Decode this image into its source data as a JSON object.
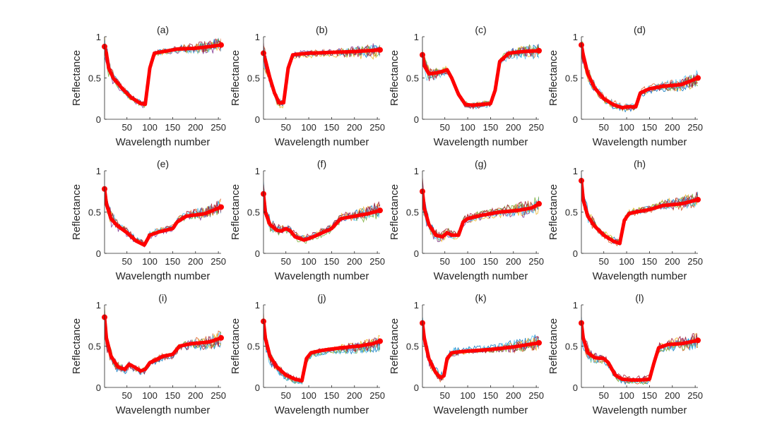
{
  "chart_data": [
    {
      "type": "line",
      "title": "(a)",
      "xlabel": "Wavelength number",
      "ylabel": "Reflectance",
      "xlim": [
        1,
        256
      ],
      "ylim": [
        0,
        1
      ],
      "xticks": [
        50,
        100,
        150,
        200,
        250
      ],
      "yticks": [
        0,
        0.5,
        1
      ],
      "ytick_labels": [
        "0",
        "0.5",
        "1"
      ],
      "series": [
        {
          "name": "mean",
          "color": "#ff0000",
          "x": [
            1,
            5,
            10,
            20,
            40,
            60,
            80,
            90,
            100,
            110,
            130,
            160,
            200,
            230,
            256
          ],
          "y": [
            0.88,
            0.8,
            0.62,
            0.5,
            0.37,
            0.26,
            0.19,
            0.18,
            0.62,
            0.8,
            0.82,
            0.85,
            0.86,
            0.88,
            0.9
          ]
        }
      ]
    },
    {
      "type": "line",
      "title": "(b)",
      "xlabel": "Wavelength number",
      "ylabel": "Reflectance",
      "xlim": [
        1,
        256
      ],
      "ylim": [
        0,
        1
      ],
      "xticks": [
        50,
        100,
        150,
        200,
        250
      ],
      "yticks": [
        0,
        0.5,
        1
      ],
      "ytick_labels": [
        "0",
        "0.5",
        "1"
      ],
      "series": [
        {
          "name": "mean",
          "color": "#ff0000",
          "x": [
            1,
            5,
            15,
            25,
            35,
            45,
            55,
            65,
            80,
            100,
            150,
            200,
            230,
            256
          ],
          "y": [
            0.8,
            0.72,
            0.5,
            0.32,
            0.2,
            0.2,
            0.62,
            0.78,
            0.79,
            0.8,
            0.81,
            0.82,
            0.83,
            0.84
          ]
        }
      ]
    },
    {
      "type": "line",
      "title": "(c)",
      "xlabel": "Wavelength number",
      "ylabel": "Reflectance",
      "xlim": [
        1,
        256
      ],
      "ylim": [
        0,
        1
      ],
      "xticks": [
        50,
        100,
        150,
        200,
        250
      ],
      "yticks": [
        0,
        0.5,
        1
      ],
      "ytick_labels": [
        "0",
        "0.5",
        "1"
      ],
      "series": [
        {
          "name": "mean",
          "color": "#ff0000",
          "x": [
            1,
            5,
            15,
            30,
            45,
            55,
            65,
            80,
            95,
            110,
            130,
            150,
            160,
            170,
            190,
            220,
            256
          ],
          "y": [
            0.78,
            0.65,
            0.55,
            0.56,
            0.58,
            0.6,
            0.5,
            0.3,
            0.18,
            0.17,
            0.18,
            0.19,
            0.35,
            0.7,
            0.8,
            0.82,
            0.83
          ]
        }
      ]
    },
    {
      "type": "line",
      "title": "(d)",
      "xlabel": "Wavelength number",
      "ylabel": "Reflectance",
      "xlim": [
        1,
        256
      ],
      "ylim": [
        0,
        1
      ],
      "xticks": [
        50,
        100,
        150,
        200,
        250
      ],
      "yticks": [
        0,
        0.5,
        1
      ],
      "ytick_labels": [
        "0",
        "0.5",
        "1"
      ],
      "series": [
        {
          "name": "mean",
          "color": "#ff0000",
          "x": [
            1,
            5,
            15,
            30,
            50,
            70,
            90,
            100,
            120,
            130,
            150,
            180,
            220,
            256
          ],
          "y": [
            0.9,
            0.78,
            0.55,
            0.38,
            0.25,
            0.18,
            0.14,
            0.15,
            0.15,
            0.32,
            0.37,
            0.4,
            0.42,
            0.5
          ]
        }
      ]
    },
    {
      "type": "line",
      "title": "(e)",
      "xlabel": "Wavelength number",
      "ylabel": "Reflectance",
      "xlim": [
        1,
        256
      ],
      "ylim": [
        0,
        1
      ],
      "xticks": [
        50,
        100,
        150,
        200,
        250
      ],
      "yticks": [
        0,
        0.5,
        1
      ],
      "ytick_labels": [
        "0",
        "0.5",
        "1"
      ],
      "series": [
        {
          "name": "mean",
          "color": "#ff0000",
          "x": [
            1,
            5,
            15,
            30,
            50,
            70,
            88,
            100,
            120,
            150,
            160,
            180,
            220,
            256
          ],
          "y": [
            0.78,
            0.6,
            0.42,
            0.33,
            0.25,
            0.15,
            0.1,
            0.22,
            0.26,
            0.3,
            0.38,
            0.45,
            0.48,
            0.56
          ]
        }
      ]
    },
    {
      "type": "line",
      "title": "(f)",
      "xlabel": "Wavelength number",
      "ylabel": "Reflectance",
      "xlim": [
        1,
        256
      ],
      "ylim": [
        0,
        1
      ],
      "xticks": [
        50,
        100,
        150,
        200,
        250
      ],
      "yticks": [
        0,
        0.5,
        1
      ],
      "ytick_labels": [
        "0",
        "0.5",
        "1"
      ],
      "series": [
        {
          "name": "mean",
          "color": "#ff0000",
          "x": [
            1,
            5,
            15,
            30,
            40,
            50,
            60,
            70,
            90,
            110,
            130,
            150,
            170,
            200,
            230,
            256
          ],
          "y": [
            0.72,
            0.5,
            0.35,
            0.28,
            0.27,
            0.3,
            0.27,
            0.2,
            0.16,
            0.2,
            0.25,
            0.3,
            0.42,
            0.45,
            0.48,
            0.52
          ]
        }
      ]
    },
    {
      "type": "line",
      "title": "(g)",
      "xlabel": "Wavelength number",
      "ylabel": "Reflectance",
      "xlim": [
        1,
        256
      ],
      "ylim": [
        0,
        1
      ],
      "xticks": [
        50,
        100,
        150,
        200,
        250
      ],
      "yticks": [
        0,
        0.5,
        1
      ],
      "ytick_labels": [
        "0",
        "0.5",
        "1"
      ],
      "series": [
        {
          "name": "mean",
          "color": "#ff0000",
          "x": [
            1,
            5,
            15,
            30,
            45,
            55,
            65,
            80,
            90,
            100,
            130,
            170,
            210,
            240,
            256
          ],
          "y": [
            0.75,
            0.55,
            0.35,
            0.22,
            0.2,
            0.25,
            0.22,
            0.22,
            0.38,
            0.42,
            0.46,
            0.5,
            0.52,
            0.55,
            0.6
          ]
        }
      ]
    },
    {
      "type": "line",
      "title": "(h)",
      "xlabel": "Wavelength number",
      "ylabel": "Reflectance",
      "xlim": [
        1,
        256
      ],
      "ylim": [
        0,
        1
      ],
      "xticks": [
        50,
        100,
        150,
        200,
        250
      ],
      "yticks": [
        0,
        0.5,
        1
      ],
      "ytick_labels": [
        "0",
        "0.5",
        "1"
      ],
      "series": [
        {
          "name": "mean",
          "color": "#ff0000",
          "x": [
            1,
            5,
            15,
            30,
            50,
            70,
            85,
            95,
            105,
            120,
            150,
            180,
            220,
            256
          ],
          "y": [
            0.88,
            0.65,
            0.45,
            0.33,
            0.22,
            0.15,
            0.12,
            0.4,
            0.48,
            0.5,
            0.53,
            0.58,
            0.6,
            0.65
          ]
        }
      ]
    },
    {
      "type": "line",
      "title": "(i)",
      "xlabel": "Wavelength number",
      "ylabel": "Reflectance",
      "xlim": [
        1,
        256
      ],
      "ylim": [
        0,
        1
      ],
      "xticks": [
        50,
        100,
        150,
        200,
        250
      ],
      "yticks": [
        0,
        0.5,
        1
      ],
      "ytick_labels": [
        "0",
        "0.5",
        "1"
      ],
      "series": [
        {
          "name": "mean",
          "color": "#ff0000",
          "x": [
            1,
            5,
            15,
            30,
            45,
            55,
            65,
            80,
            90,
            100,
            130,
            150,
            165,
            190,
            230,
            256
          ],
          "y": [
            0.85,
            0.6,
            0.38,
            0.25,
            0.22,
            0.28,
            0.25,
            0.2,
            0.22,
            0.3,
            0.38,
            0.4,
            0.5,
            0.53,
            0.55,
            0.6
          ]
        }
      ]
    },
    {
      "type": "line",
      "title": "(j)",
      "xlabel": "Wavelength number",
      "ylabel": "Reflectance",
      "xlim": [
        1,
        256
      ],
      "ylim": [
        0,
        1
      ],
      "xticks": [
        50,
        100,
        150,
        200,
        250
      ],
      "yticks": [
        0,
        0.5,
        1
      ],
      "ytick_labels": [
        "0",
        "0.5",
        "1"
      ],
      "series": [
        {
          "name": "mean",
          "color": "#ff0000",
          "x": [
            1,
            5,
            15,
            30,
            50,
            70,
            85,
            95,
            105,
            130,
            170,
            210,
            240,
            256
          ],
          "y": [
            0.8,
            0.6,
            0.38,
            0.25,
            0.15,
            0.1,
            0.08,
            0.35,
            0.42,
            0.45,
            0.48,
            0.5,
            0.53,
            0.56
          ]
        }
      ]
    },
    {
      "type": "line",
      "title": "(k)",
      "xlabel": "Wavelength number",
      "ylabel": "Reflectance",
      "xlim": [
        1,
        256
      ],
      "ylim": [
        0,
        1
      ],
      "xticks": [
        50,
        100,
        150,
        200,
        250
      ],
      "yticks": [
        0,
        0.5,
        1
      ],
      "ytick_labels": [
        "0",
        "0.5",
        "1"
      ],
      "series": [
        {
          "name": "mean",
          "color": "#ff0000",
          "x": [
            1,
            5,
            15,
            30,
            40,
            48,
            55,
            65,
            80,
            100,
            150,
            200,
            256
          ],
          "y": [
            0.78,
            0.6,
            0.35,
            0.18,
            0.12,
            0.14,
            0.35,
            0.42,
            0.43,
            0.44,
            0.46,
            0.49,
            0.54
          ]
        }
      ]
    },
    {
      "type": "line",
      "title": "(l)",
      "xlabel": "Wavelength number",
      "ylabel": "Reflectance",
      "xlim": [
        1,
        256
      ],
      "ylim": [
        0,
        1
      ],
      "xticks": [
        50,
        100,
        150,
        200,
        250
      ],
      "yticks": [
        0,
        0.5,
        1
      ],
      "ytick_labels": [
        "0",
        "0.5",
        "1"
      ],
      "series": [
        {
          "name": "mean",
          "color": "#ff0000",
          "x": [
            1,
            5,
            15,
            30,
            50,
            60,
            75,
            90,
            110,
            130,
            150,
            160,
            170,
            190,
            220,
            256
          ],
          "y": [
            0.78,
            0.6,
            0.42,
            0.36,
            0.35,
            0.3,
            0.15,
            0.1,
            0.09,
            0.09,
            0.1,
            0.3,
            0.48,
            0.52,
            0.53,
            0.57
          ]
        }
      ]
    }
  ]
}
